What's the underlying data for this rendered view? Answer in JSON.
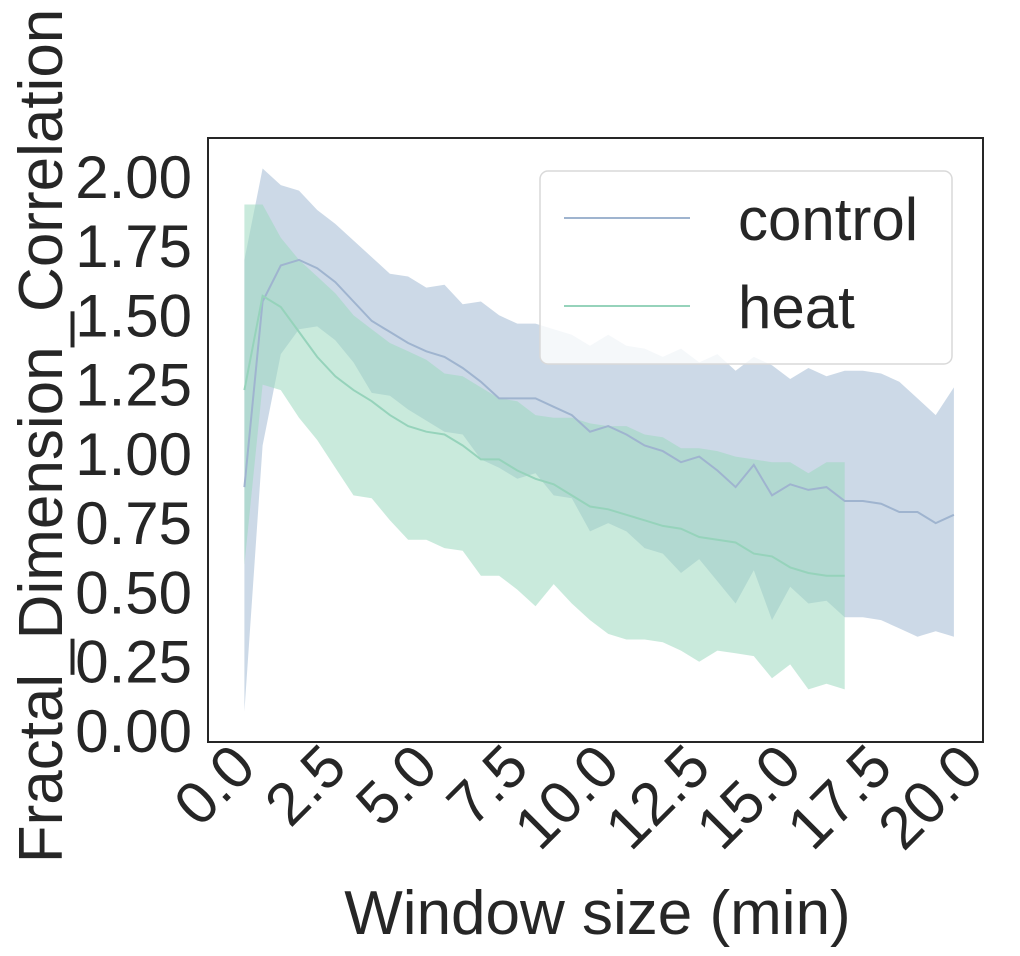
{
  "chart_data": {
    "type": "line",
    "xlabel": "Window size (min)",
    "ylabel": "Fractal_Dimension_Correlation",
    "xlim": [
      -1.0,
      20.3
    ],
    "ylim": [
      -0.04,
      2.14
    ],
    "x_ticks": [
      0.0,
      2.5,
      5.0,
      7.5,
      10.0,
      12.5,
      15.0,
      17.5,
      20.0
    ],
    "x_tick_labels": [
      "0.0",
      "2.5",
      "5.0",
      "7.5",
      "10.0",
      "12.5",
      "15.0",
      "17.5",
      "20.0"
    ],
    "y_ticks": [
      0.0,
      0.25,
      0.5,
      0.75,
      1.0,
      1.25,
      1.5,
      1.75,
      2.0
    ],
    "y_tick_labels": [
      "0.00",
      "0.25",
      "0.50",
      "0.75",
      "1.00",
      "1.25",
      "1.50",
      "1.75",
      "2.00"
    ],
    "grid": false,
    "legend_position": "top-right",
    "series": [
      {
        "name": "control",
        "color": "#9fb4cf",
        "band_color": "#aabfd7",
        "x": [
          0.0,
          0.5,
          1.0,
          1.5,
          2.0,
          2.5,
          3.0,
          3.5,
          4.0,
          4.5,
          5.0,
          5.5,
          6.0,
          6.5,
          7.0,
          7.5,
          8.0,
          8.5,
          9.0,
          9.5,
          10.0,
          10.5,
          11.0,
          11.5,
          12.0,
          12.5,
          13.0,
          13.5,
          14.0,
          14.5,
          15.0,
          15.5,
          16.0,
          16.5,
          17.0,
          17.5,
          18.0,
          18.5,
          19.0,
          19.5
        ],
        "values": [
          0.88,
          1.55,
          1.68,
          1.7,
          1.67,
          1.62,
          1.55,
          1.48,
          1.44,
          1.4,
          1.37,
          1.35,
          1.31,
          1.26,
          1.2,
          1.2,
          1.2,
          1.17,
          1.14,
          1.08,
          1.1,
          1.07,
          1.03,
          1.01,
          0.97,
          0.99,
          0.94,
          0.88,
          0.96,
          0.85,
          0.89,
          0.87,
          0.88,
          0.83,
          0.83,
          0.82,
          0.79,
          0.79,
          0.75,
          0.78
        ],
        "upper": [
          1.7,
          2.03,
          1.97,
          1.95,
          1.88,
          1.83,
          1.77,
          1.71,
          1.65,
          1.64,
          1.6,
          1.61,
          1.54,
          1.55,
          1.5,
          1.47,
          1.47,
          1.45,
          1.43,
          1.39,
          1.43,
          1.39,
          1.38,
          1.35,
          1.38,
          1.33,
          1.36,
          1.3,
          1.35,
          1.32,
          1.27,
          1.31,
          1.28,
          1.3,
          1.3,
          1.29,
          1.26,
          1.2,
          1.14,
          1.24
        ],
        "lower": [
          0.07,
          1.03,
          1.36,
          1.45,
          1.46,
          1.41,
          1.33,
          1.22,
          1.21,
          1.16,
          1.12,
          1.08,
          1.07,
          0.98,
          0.95,
          0.91,
          0.93,
          0.85,
          0.84,
          0.72,
          0.75,
          0.72,
          0.66,
          0.64,
          0.57,
          0.62,
          0.54,
          0.46,
          0.58,
          0.4,
          0.52,
          0.46,
          0.47,
          0.41,
          0.41,
          0.4,
          0.37,
          0.34,
          0.36,
          0.34
        ]
      },
      {
        "name": "heat",
        "color": "#96d3bb",
        "band_color": "#9dd8c0",
        "x": [
          0.0,
          0.5,
          1.0,
          1.5,
          2.0,
          2.5,
          3.0,
          3.5,
          4.0,
          4.5,
          5.0,
          5.5,
          6.0,
          6.5,
          7.0,
          7.5,
          8.0,
          8.5,
          9.0,
          9.5,
          10.0,
          10.5,
          11.0,
          11.5,
          12.0,
          12.5,
          13.0,
          13.5,
          14.0,
          14.5,
          15.0,
          15.5,
          16.0,
          16.5
        ],
        "values": [
          1.23,
          1.57,
          1.53,
          1.44,
          1.35,
          1.28,
          1.23,
          1.19,
          1.14,
          1.1,
          1.08,
          1.07,
          1.03,
          0.98,
          0.98,
          0.94,
          0.91,
          0.89,
          0.85,
          0.81,
          0.8,
          0.78,
          0.76,
          0.74,
          0.73,
          0.7,
          0.69,
          0.68,
          0.64,
          0.63,
          0.59,
          0.57,
          0.56,
          0.56
        ],
        "upper": [
          1.9,
          1.9,
          1.78,
          1.7,
          1.64,
          1.58,
          1.5,
          1.45,
          1.4,
          1.37,
          1.34,
          1.29,
          1.28,
          1.24,
          1.2,
          1.19,
          1.14,
          1.13,
          1.13,
          1.11,
          1.1,
          1.1,
          1.07,
          1.06,
          1.02,
          1.02,
          1.01,
          0.99,
          0.98,
          0.97,
          0.97,
          0.93,
          0.97,
          0.97
        ],
        "lower": [
          0.6,
          1.25,
          1.23,
          1.13,
          1.05,
          0.95,
          0.85,
          0.84,
          0.76,
          0.69,
          0.69,
          0.66,
          0.65,
          0.56,
          0.56,
          0.51,
          0.45,
          0.53,
          0.46,
          0.4,
          0.35,
          0.33,
          0.33,
          0.32,
          0.29,
          0.25,
          0.29,
          0.28,
          0.27,
          0.19,
          0.24,
          0.15,
          0.17,
          0.15
        ]
      }
    ]
  }
}
